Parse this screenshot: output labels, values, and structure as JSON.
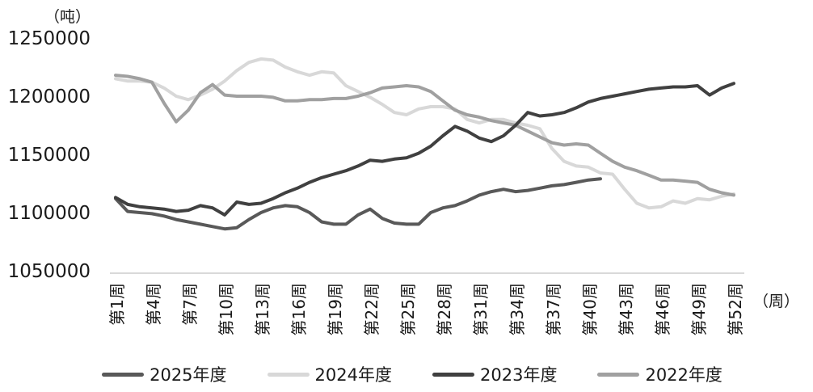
{
  "colors": {
    "background": "#ffffff",
    "axis_line": "#d9d9d9",
    "text": "#1a1a1a"
  },
  "chart_data": {
    "type": "line",
    "title": "",
    "ylabel": "（吨）",
    "xlabel": "（周）",
    "ylim": [
      1050000,
      1250000
    ],
    "ytick_interval": 50000,
    "yticks": [
      "1250000",
      "1200000",
      "1150000",
      "1100000",
      "1050000"
    ],
    "ytick_values": [
      1250000,
      1200000,
      1150000,
      1100000,
      1050000
    ],
    "x_range_weeks": [
      1,
      52
    ],
    "xtick_weeks": [
      1,
      4,
      7,
      10,
      13,
      16,
      19,
      22,
      25,
      28,
      31,
      34,
      37,
      40,
      43,
      46,
      49,
      52
    ],
    "xtick_labels": [
      "第1周",
      "第4周",
      "第7周",
      "第10周",
      "第13周",
      "第16周",
      "第19周",
      "第22周",
      "第25周",
      "第28周",
      "第31周",
      "第34周",
      "第37周",
      "第40周",
      "第43周",
      "第46周",
      "第49周",
      "第52周"
    ],
    "grid": false,
    "legend_position": "bottom",
    "draw_order": [
      "2024年度",
      "2022年度",
      "2025年度",
      "2023年度"
    ],
    "series": [
      {
        "name": "2025年度",
        "color": "#595959",
        "start_week": 1,
        "values": [
          1112000,
          1101000,
          1100000,
          1099000,
          1097000,
          1094000,
          1092000,
          1090000,
          1088000,
          1086000,
          1087000,
          1094000,
          1100000,
          1104000,
          1106000,
          1105000,
          1100000,
          1092000,
          1090000,
          1090000,
          1098000,
          1103000,
          1095000,
          1091000,
          1090000,
          1090000,
          1100000,
          1104000,
          1106000,
          1110000,
          1115000,
          1118000,
          1120000,
          1118000,
          1119000,
          1121000,
          1123000,
          1124000,
          1126000,
          1128000,
          1129000
        ]
      },
      {
        "name": "2024年度",
        "color": "#d8d8d8",
        "start_week": 1,
        "values": [
          1215000,
          1213000,
          1213000,
          1212000,
          1207000,
          1200000,
          1197000,
          1201000,
          1206000,
          1213000,
          1222000,
          1229000,
          1232000,
          1231000,
          1225000,
          1221000,
          1218000,
          1221000,
          1220000,
          1209000,
          1204000,
          1199000,
          1193000,
          1186000,
          1184000,
          1189000,
          1191000,
          1191000,
          1189000,
          1180000,
          1177000,
          1180000,
          1180000,
          1177000,
          1175000,
          1172000,
          1155000,
          1144000,
          1140000,
          1139000,
          1134000,
          1133000,
          1120000,
          1108000,
          1104000,
          1105000,
          1110000,
          1108000,
          1112000,
          1111000,
          1114000,
          1116000
        ]
      },
      {
        "name": "2023年度",
        "color": "#404040",
        "start_week": 1,
        "values": [
          1113000,
          1107000,
          1105000,
          1104000,
          1103000,
          1101000,
          1102000,
          1106000,
          1104000,
          1098000,
          1109000,
          1107000,
          1108000,
          1112000,
          1117000,
          1121000,
          1126000,
          1130000,
          1133000,
          1136000,
          1140000,
          1145000,
          1144000,
          1146000,
          1147000,
          1151000,
          1157000,
          1166000,
          1174000,
          1170000,
          1164000,
          1161000,
          1166000,
          1175000,
          1186000,
          1183000,
          1184000,
          1186000,
          1190000,
          1195000,
          1198000,
          1200000,
          1202000,
          1204000,
          1206000,
          1207000,
          1208000,
          1208000,
          1209000,
          1201000,
          1207000,
          1211000
        ]
      },
      {
        "name": "2022年度",
        "color": "#a0a0a0",
        "start_week": 1,
        "values": [
          1218000,
          1217000,
          1215000,
          1212000,
          1194000,
          1178000,
          1188000,
          1203000,
          1210000,
          1201000,
          1200000,
          1200000,
          1200000,
          1199000,
          1196000,
          1196000,
          1197000,
          1197000,
          1198000,
          1198000,
          1200000,
          1203000,
          1207000,
          1208000,
          1209000,
          1208000,
          1204000,
          1196000,
          1188000,
          1184000,
          1182000,
          1179000,
          1177000,
          1175000,
          1170000,
          1165000,
          1160000,
          1158000,
          1159000,
          1158000,
          1151000,
          1144000,
          1139000,
          1136000,
          1132000,
          1128000,
          1128000,
          1127000,
          1126000,
          1120000,
          1117000,
          1115000
        ]
      }
    ]
  }
}
